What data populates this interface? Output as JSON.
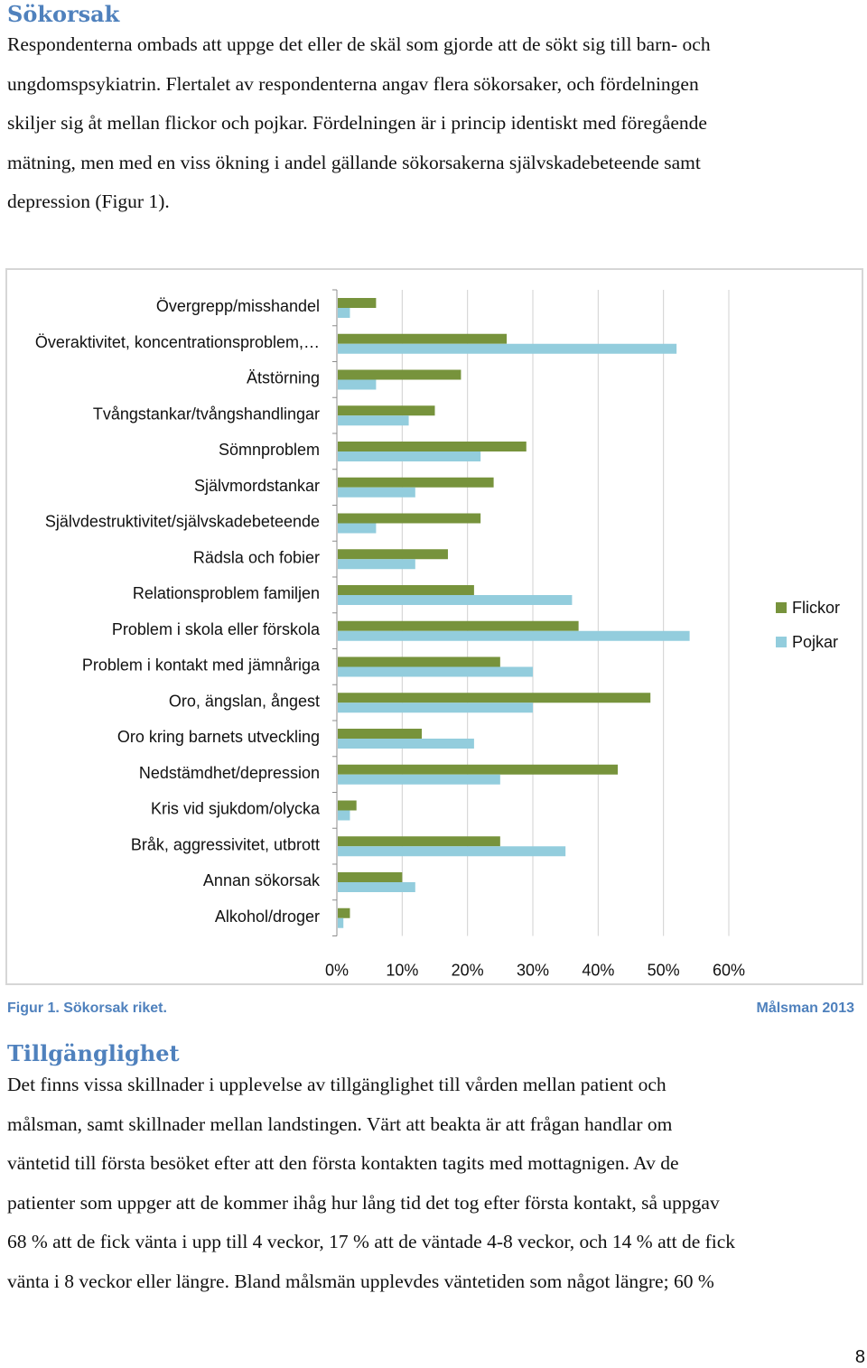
{
  "section1": {
    "heading": "Sökorsak",
    "lines": [
      "Respondenterna ombads att uppge det eller de skäl som gjorde att de sökt sig till barn- och",
      "ungdomspsykiatrin. Flertalet av respondenterna angav flera sökorsaker, och fördelningen",
      "skiljer sig åt mellan flickor och pojkar. Fördelningen är i princip identiskt med föregående",
      "mätning, men med en viss ökning i andel gällande sökorsakerna självskadebeteende samt",
      "depression (Figur 1)."
    ]
  },
  "chart_data": {
    "type": "bar",
    "orientation": "horizontal",
    "categories": [
      "Övergrepp/misshandel",
      "Överaktivitet, koncentrationsproblem,…",
      "Ätstörning",
      "Tvångstankar/tvångshandlingar",
      "Sömnproblem",
      "Självmordstankar",
      "Självdestruktivitet/självskadebeteende",
      "Rädsla och fobier",
      "Relationsproblem familjen",
      "Problem i skola eller förskola",
      "Problem i kontakt med jämnåriga",
      "Oro, ängslan, ångest",
      "Oro kring barnets utveckling",
      "Nedstämdhet/depression",
      "Kris vid sjukdom/olycka",
      "Bråk, aggressivitet, utbrott",
      "Annan sökorsak",
      "Alkohol/droger"
    ],
    "series": [
      {
        "name": "Flickor",
        "color": "#77933c",
        "values": [
          6,
          26,
          19,
          15,
          29,
          24,
          22,
          17,
          21,
          37,
          25,
          48,
          13,
          43,
          3,
          25,
          10,
          2
        ]
      },
      {
        "name": "Pojkar",
        "color": "#93cddd",
        "values": [
          2,
          52,
          6,
          11,
          22,
          12,
          6,
          12,
          36,
          54,
          30,
          30,
          21,
          25,
          2,
          35,
          12,
          1
        ]
      }
    ],
    "xlim": [
      0,
      60
    ],
    "ticks": [
      "0%",
      "10%",
      "20%",
      "30%",
      "40%",
      "50%",
      "60%"
    ],
    "gridlines": true,
    "legend_position": "right"
  },
  "caption": {
    "left": "Figur 1. Sökorsak riket.",
    "right": "Målsman 2013"
  },
  "section2": {
    "heading": "Tillgänglighet",
    "lines": [
      "Det finns vissa skillnader i upplevelse av tillgänglighet till vården mellan patient och",
      "målsman, samt skillnader mellan landstingen. Värt att beakta är att frågan handlar om",
      "väntetid till första besöket efter att den första kontakten tagits med mottagnigen. Av de",
      "patienter som uppger att de kommer ihåg hur lång tid det tog efter första kontakt, så uppgav",
      "68 % att de fick vänta i upp till 4 veckor, 17 % att de väntade 4-8 veckor, och 14 % att de fick",
      "vänta i 8 veckor eller längre. Bland målsmän upplevdes väntetiden som något längre; 60 %"
    ]
  },
  "page_number": "8"
}
